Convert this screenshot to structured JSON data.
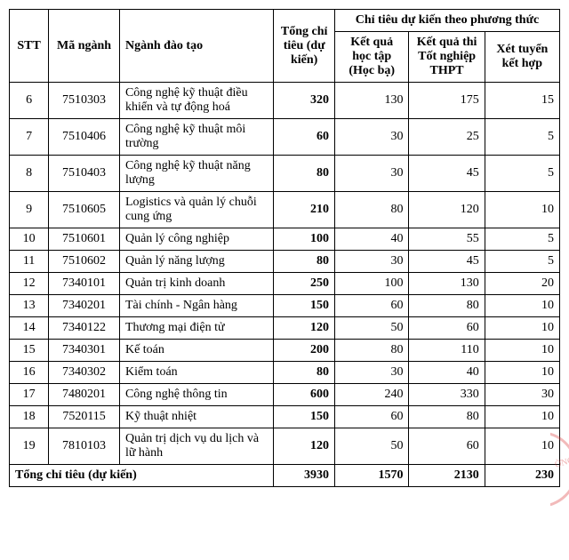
{
  "headers": {
    "stt": "STT",
    "ma": "Mã ngành",
    "nganh": "Ngành đào tạo",
    "tong": "Tổng chỉ tiêu (dự kiến)",
    "phuongthuc": "Chỉ tiêu dự kiến theo phương thức",
    "hocba": "Kết quả học tập (Học bạ)",
    "thpt": "Kết quả thi Tốt nghiệp THPT",
    "kethop": "Xét tuyển kết hợp"
  },
  "rows": [
    {
      "stt": "6",
      "ma": "7510303",
      "nganh": "Công nghệ kỹ thuật điều khiển và tự động hoá",
      "tong": "320",
      "hocba": "130",
      "thpt": "175",
      "kethop": "15"
    },
    {
      "stt": "7",
      "ma": "7510406",
      "nganh": "Công nghệ kỹ thuật môi trường",
      "tong": "60",
      "hocba": "30",
      "thpt": "25",
      "kethop": "5"
    },
    {
      "stt": "8",
      "ma": "7510403",
      "nganh": "Công nghệ kỹ thuật năng lượng",
      "tong": "80",
      "hocba": "30",
      "thpt": "45",
      "kethop": "5"
    },
    {
      "stt": "9",
      "ma": "7510605",
      "nganh": "Logistics và quản lý chuỗi cung ứng",
      "tong": "210",
      "hocba": "80",
      "thpt": "120",
      "kethop": "10"
    },
    {
      "stt": "10",
      "ma": "7510601",
      "nganh": "Quản lý công nghiệp",
      "tong": "100",
      "hocba": "40",
      "thpt": "55",
      "kethop": "5"
    },
    {
      "stt": "11",
      "ma": "7510602",
      "nganh": "Quản lý năng lượng",
      "tong": "80",
      "hocba": "30",
      "thpt": "45",
      "kethop": "5"
    },
    {
      "stt": "12",
      "ma": "7340101",
      "nganh": "Quản trị kinh doanh",
      "tong": "250",
      "hocba": "100",
      "thpt": "130",
      "kethop": "20"
    },
    {
      "stt": "13",
      "ma": "7340201",
      "nganh": "Tài chính - Ngân hàng",
      "tong": "150",
      "hocba": "60",
      "thpt": "80",
      "kethop": "10"
    },
    {
      "stt": "14",
      "ma": "7340122",
      "nganh": "Thương mại điện tử",
      "tong": "120",
      "hocba": "50",
      "thpt": "60",
      "kethop": "10"
    },
    {
      "stt": "15",
      "ma": "7340301",
      "nganh": "Kế toán",
      "tong": "200",
      "hocba": "80",
      "thpt": "110",
      "kethop": "10"
    },
    {
      "stt": "16",
      "ma": "7340302",
      "nganh": "Kiểm toán",
      "tong": "80",
      "hocba": "30",
      "thpt": "40",
      "kethop": "10"
    },
    {
      "stt": "17",
      "ma": "7480201",
      "nganh": "Công nghệ thông tin",
      "tong": "600",
      "hocba": "240",
      "thpt": "330",
      "kethop": "30"
    },
    {
      "stt": "18",
      "ma": "7520115",
      "nganh": "Kỹ thuật nhiệt",
      "tong": "150",
      "hocba": "60",
      "thpt": "80",
      "kethop": "10"
    },
    {
      "stt": "19",
      "ma": "7810103",
      "nganh": "Quản trị dịch vụ du lịch và lữ hành",
      "tong": "120",
      "hocba": "50",
      "thpt": "60",
      "kethop": "10"
    }
  ],
  "total": {
    "label": "Tổng chỉ tiêu (dự kiến)",
    "tong": "3930",
    "hocba": "1570",
    "thpt": "2130",
    "kethop": "230"
  },
  "stamp_text": "ỜNG"
}
